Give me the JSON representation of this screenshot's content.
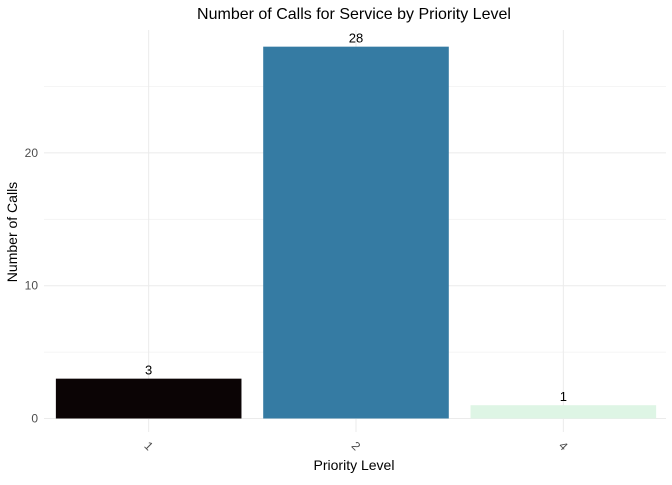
{
  "chart_data": {
    "type": "bar",
    "title": "Number of Calls for Service by Priority Level",
    "xlabel": "Priority Level",
    "ylabel": "Number of Calls",
    "categories": [
      "1",
      "2",
      "4"
    ],
    "values": [
      3,
      28,
      1
    ],
    "data_labels": [
      "3",
      "28",
      "1"
    ],
    "bar_colors": [
      "#0b0405",
      "#357ba3",
      "#def5e5"
    ],
    "ylim": [
      0,
      29.4
    ],
    "y_ticks": [
      0,
      10,
      20
    ],
    "y_tick_labels": [
      "0",
      "10",
      "20"
    ],
    "grid": true,
    "legend": "none",
    "x_tick_rotation": "45"
  }
}
